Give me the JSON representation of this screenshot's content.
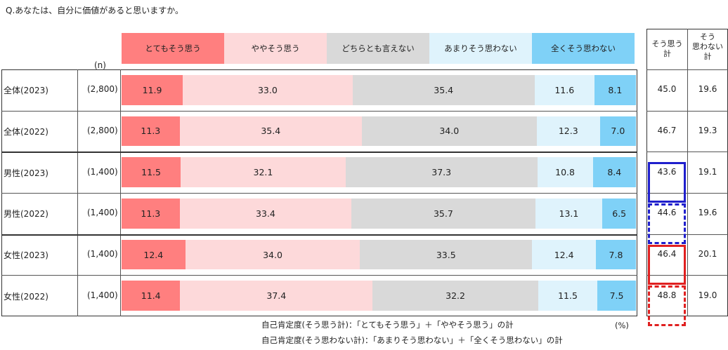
{
  "title": "Q.あなたは、自分に価値があると思いますか。",
  "n_header": "(n)",
  "unit_label": "(%)",
  "legend": [
    {
      "label": "とてもそう思う",
      "color": "#ff7f7f"
    },
    {
      "label": "ややそう思う",
      "color": "#fdd9da"
    },
    {
      "label": "どちらとも言えない",
      "color": "#d9d9d9"
    },
    {
      "label": "あまりそう思わない",
      "color": "#dff3fc"
    },
    {
      "label": "全くそう思わない",
      "color": "#7fd1f7"
    }
  ],
  "sum_headers": {
    "agree": "そう思う\n計",
    "disagree": "そう\n思わない\n計"
  },
  "chart_data": {
    "type": "bar",
    "stacked": true,
    "orientation": "horizontal",
    "title": "Q.あなたは、自分に価値があると思いますか。",
    "xlim": [
      0,
      100
    ],
    "categories": [
      "全体(2023)",
      "全体(2022)",
      "男性(2023)",
      "男性(2022)",
      "女性(2023)",
      "女性(2022)"
    ],
    "n": [
      "(2,800)",
      "(2,800)",
      "(1,400)",
      "(1,400)",
      "(1,400)",
      "(1,400)"
    ],
    "series": [
      {
        "name": "とてもそう思う",
        "values": [
          11.9,
          11.3,
          11.5,
          11.3,
          12.4,
          11.4
        ]
      },
      {
        "name": "ややそう思う",
        "values": [
          33.0,
          35.4,
          32.1,
          33.4,
          34.0,
          37.4
        ]
      },
      {
        "name": "どちらとも言えない",
        "values": [
          35.4,
          34.0,
          37.3,
          35.7,
          33.5,
          32.2
        ]
      },
      {
        "name": "あまりそう思わない",
        "values": [
          11.6,
          12.3,
          10.8,
          13.1,
          12.4,
          11.5
        ]
      },
      {
        "name": "全くそう思わない",
        "values": [
          8.1,
          7.0,
          8.4,
          6.5,
          7.8,
          7.5
        ]
      }
    ],
    "agree_total": [
      45.0,
      46.7,
      43.6,
      44.6,
      46.4,
      48.8
    ],
    "disagree_total": [
      19.6,
      19.3,
      19.1,
      19.6,
      20.1,
      19.0
    ],
    "highlights": [
      {
        "row": 2,
        "color": "#1f1fcc",
        "style": "solid"
      },
      {
        "row": 3,
        "color": "#1f1fcc",
        "style": "dashed"
      },
      {
        "row": 4,
        "color": "#e02020",
        "style": "solid"
      },
      {
        "row": 5,
        "color": "#e02020",
        "style": "dashed"
      }
    ]
  },
  "footnotes": [
    "自己肯定度(そう思う計)：「とてもそう思う」＋「ややそう思う」の計",
    "自己肯定度(そう思わない計)：「あまりそう思わない」＋「全くそう思わない」の計"
  ]
}
